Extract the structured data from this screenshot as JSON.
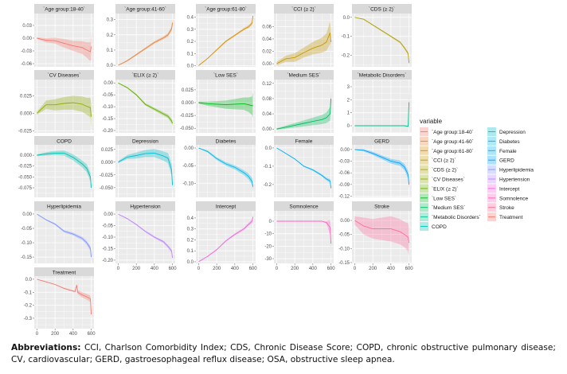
{
  "chart_data": {
    "type": "line",
    "layout": "facet-grid",
    "legend": {
      "title": "variable",
      "placement": "right"
    },
    "grid": true,
    "x_ticks": [
      0,
      200,
      400,
      600
    ],
    "xlim": [
      -30,
      630
    ],
    "x": [
      0,
      100,
      200,
      300,
      400,
      500,
      550,
      590,
      600
    ],
    "panels": [
      {
        "title": "`Age group:18-40`",
        "color": "#F8766D",
        "yticks": [
          0.03,
          0.0,
          -0.03,
          -0.06
        ],
        "tick_labels": [
          "0.03",
          "0.00",
          "-0.03",
          "-0.06"
        ],
        "ylim": [
          -0.0675,
          0.058
        ],
        "y": [
          0,
          -0.005,
          -0.006,
          -0.012,
          -0.018,
          -0.022,
          -0.028,
          -0.032,
          -0.02
        ],
        "band": [
          0.002,
          0.005,
          0.007,
          0.01,
          0.012,
          0.015,
          0.018,
          0.022,
          0.03
        ]
      },
      {
        "title": "`Age group:41-60`",
        "color": "#EC8239",
        "yticks": [
          0.0,
          0.1,
          0.2,
          0.3
        ],
        "tick_labels": [
          "0.0",
          "0.1",
          "0.2",
          "0.3"
        ],
        "ylim": [
          -0.01,
          0.34
        ],
        "y": [
          0,
          0.03,
          0.07,
          0.11,
          0.15,
          0.18,
          0.2,
          0.24,
          0.28
        ],
        "band": [
          0.002,
          0.004,
          0.006,
          0.007,
          0.008,
          0.01,
          0.012,
          0.015,
          0.025
        ]
      },
      {
        "title": "`Age group:61-80`",
        "color": "#DB8E00",
        "yticks": [
          0.0,
          0.1,
          0.2,
          0.3,
          0.4
        ],
        "tick_labels": [
          "0.0",
          "0.1",
          "0.2",
          "0.3",
          "0.4"
        ],
        "ylim": [
          -0.01,
          0.43
        ],
        "y": [
          0,
          0.06,
          0.13,
          0.2,
          0.25,
          0.3,
          0.32,
          0.35,
          0.41
        ],
        "band": [
          0.002,
          0.004,
          0.006,
          0.007,
          0.008,
          0.01,
          0.012,
          0.015,
          0.02
        ]
      },
      {
        "title": "`CCI (≥ 2)`",
        "color": "#C79800",
        "yticks": [
          0.0,
          0.02,
          0.04,
          0.06
        ],
        "tick_labels": [
          "0.00",
          "0.02",
          "0.04",
          "0.06"
        ],
        "ylim": [
          -0.005,
          0.081
        ],
        "y": [
          0,
          0.008,
          0.01,
          0.018,
          0.025,
          0.03,
          0.035,
          0.05,
          0.035
        ],
        "band": [
          0.003,
          0.005,
          0.007,
          0.008,
          0.01,
          0.012,
          0.014,
          0.018,
          0.02
        ]
      },
      {
        "title": "`CDS (≥ 2)`",
        "color": "#AEA200",
        "yticks": [
          0.0,
          -0.1,
          -0.2
        ],
        "tick_labels": [
          "0.0",
          "-0.1",
          "-0.2"
        ],
        "ylim": [
          -0.26,
          0.02
        ],
        "y": [
          0,
          -0.01,
          -0.04,
          -0.07,
          -0.1,
          -0.13,
          -0.16,
          -0.19,
          -0.24
        ],
        "band": [
          0.001,
          0.002,
          0.003,
          0.004,
          0.004,
          0.005,
          0.006,
          0.008,
          0.01
        ]
      },
      {
        "title": "`CV Diseases`",
        "color": "#8FAA00",
        "yticks": [
          0.025,
          0.0,
          -0.025
        ],
        "tick_labels": [
          "0.025",
          "0.000",
          "-0.025"
        ],
        "ylim": [
          -0.028,
          0.048
        ],
        "y": [
          0,
          0.012,
          0.012,
          0.014,
          0.015,
          0.013,
          0.01,
          0.008,
          -0.005
        ],
        "band": [
          0.002,
          0.006,
          0.008,
          0.009,
          0.01,
          0.011,
          0.012,
          0.014,
          0.018
        ]
      },
      {
        "title": "`ELIX (≥ 2)`",
        "color": "#64B200",
        "yticks": [
          0.0,
          -0.05,
          -0.1,
          -0.15,
          -0.2
        ],
        "tick_labels": [
          "0.00",
          "-0.05",
          "-0.10",
          "-0.15",
          "-0.20"
        ],
        "ylim": [
          -0.21,
          0.014
        ],
        "y": [
          0,
          -0.02,
          -0.05,
          -0.09,
          -0.11,
          -0.13,
          -0.14,
          -0.16,
          -0.17
        ],
        "band": [
          0.001,
          0.003,
          0.004,
          0.005,
          0.006,
          0.007,
          0.008,
          0.01,
          0.012
        ]
      },
      {
        "title": "`Low SES`",
        "color": "#00B81B",
        "yticks": [
          0.025,
          0.0,
          -0.025,
          -0.05
        ],
        "tick_labels": [
          "0.025",
          "0.000",
          "-0.025",
          "-0.050"
        ],
        "ylim": [
          -0.059,
          0.045
        ],
        "y": [
          0,
          -0.002,
          -0.003,
          -0.004,
          -0.003,
          -0.002,
          -0.004,
          -0.006,
          -0.005
        ],
        "band": [
          0.002,
          0.004,
          0.006,
          0.008,
          0.01,
          0.012,
          0.014,
          0.018,
          0.025
        ]
      },
      {
        "title": "`Medium SES`",
        "color": "#00BD5C",
        "yticks": [
          0.0,
          0.04,
          0.08,
          0.12
        ],
        "tick_labels": [
          "0.00",
          "0.04",
          "0.08",
          "0.12"
        ],
        "ylim": [
          -0.01,
          0.13
        ],
        "y": [
          0,
          0.005,
          0.01,
          0.015,
          0.02,
          0.025,
          0.03,
          0.04,
          0.08
        ],
        "band": [
          0.002,
          0.004,
          0.006,
          0.008,
          0.01,
          0.012,
          0.014,
          0.018,
          0.025
        ]
      },
      {
        "title": "`Metabolic Disorders`",
        "color": "#00C08D",
        "yticks": [
          0,
          1,
          2,
          3
        ],
        "tick_labels": [
          "0",
          "1",
          "2",
          "3"
        ],
        "ylim": [
          -0.55,
          3.55
        ],
        "y": [
          0,
          0,
          0,
          0,
          0,
          0,
          0,
          -0.05,
          1.8
        ],
        "band": [
          0.01,
          0.01,
          0.01,
          0.01,
          0.01,
          0.02,
          0.03,
          0.05,
          1.6
        ]
      },
      {
        "title": "COPD",
        "color": "#00C1B2",
        "yticks": [
          0.0,
          -0.025,
          -0.05,
          -0.075
        ],
        "tick_labels": [
          "0.000",
          "-0.025",
          "-0.050",
          "-0.075"
        ],
        "ylim": [
          -0.097,
          0.024
        ],
        "y": [
          0,
          0.003,
          0.005,
          0.005,
          -0.005,
          -0.02,
          -0.03,
          -0.05,
          -0.075
        ],
        "band": [
          0.002,
          0.004,
          0.005,
          0.006,
          0.007,
          0.008,
          0.009,
          0.01,
          0.012
        ]
      },
      {
        "title": "Depression",
        "color": "#00BFD0",
        "yticks": [
          0.025,
          0.0,
          -0.025,
          -0.05
        ],
        "tick_labels": [
          "0.025",
          "0.000",
          "-0.025",
          "-0.050"
        ],
        "ylim": [
          -0.069,
          0.034
        ],
        "y": [
          0,
          0.01,
          0.013,
          0.017,
          0.018,
          0.012,
          0.008,
          -0.015,
          -0.045
        ],
        "band": [
          0.002,
          0.004,
          0.006,
          0.007,
          0.008,
          0.009,
          0.01,
          0.012,
          0.015
        ]
      },
      {
        "title": "Diabetes",
        "color": "#00BAE8",
        "yticks": [
          0.0,
          -0.05,
          -0.1
        ],
        "tick_labels": [
          "0.00",
          "-0.05",
          "-0.10"
        ],
        "ylim": [
          -0.14,
          0.009
        ],
        "y": [
          0,
          -0.01,
          -0.03,
          -0.045,
          -0.055,
          -0.07,
          -0.08,
          -0.095,
          -0.11
        ],
        "band": [
          0.001,
          0.003,
          0.004,
          0.005,
          0.006,
          0.007,
          0.008,
          0.01,
          0.015
        ]
      },
      {
        "title": "Female",
        "color": "#00B2F3",
        "yticks": [
          0.0,
          -0.1,
          -0.2
        ],
        "tick_labels": [
          "0.0",
          "-0.1",
          "-0.2"
        ],
        "ylim": [
          -0.27,
          0.017
        ],
        "y": [
          0,
          -0.03,
          -0.06,
          -0.1,
          -0.12,
          -0.15,
          -0.17,
          -0.18,
          -0.22
        ],
        "band": [
          0.001,
          0.002,
          0.003,
          0.004,
          0.005,
          0.006,
          0.008,
          0.01,
          0.012
        ]
      },
      {
        "title": "GERD",
        "color": "#00A6FF",
        "yticks": [
          0.0,
          -0.03,
          -0.06,
          -0.09,
          -0.12
        ],
        "tick_labels": [
          "0.00",
          "-0.03",
          "-0.06",
          "-0.09",
          "-0.12"
        ],
        "ylim": [
          -0.123,
          0.012
        ],
        "y": [
          0,
          -0.002,
          -0.01,
          -0.02,
          -0.03,
          -0.035,
          -0.045,
          -0.065,
          -0.09
        ],
        "band": [
          0.001,
          0.003,
          0.004,
          0.005,
          0.006,
          0.007,
          0.008,
          0.01,
          0.012
        ]
      },
      {
        "title": "Hyperlipidemia",
        "color": "#7F96FF",
        "yticks": [
          0.0,
          -0.05,
          -0.1,
          -0.15
        ],
        "tick_labels": [
          "0.00",
          "-0.05",
          "-0.10",
          "-0.15"
        ],
        "ylim": [
          -0.172,
          0.011
        ],
        "y": [
          0,
          -0.02,
          -0.035,
          -0.06,
          -0.07,
          -0.085,
          -0.1,
          -0.12,
          -0.15
        ],
        "band": [
          0.001,
          0.002,
          0.003,
          0.004,
          0.005,
          0.006,
          0.007,
          0.009,
          0.012
        ]
      },
      {
        "title": "Hypertension",
        "color": "#BC83FF",
        "yticks": [
          0.0,
          -0.05,
          -0.1,
          -0.15,
          -0.2
        ],
        "tick_labels": [
          "0.00",
          "-0.05",
          "-0.10",
          "-0.15",
          "-0.20"
        ],
        "ylim": [
          -0.214,
          0.014
        ],
        "y": [
          0,
          -0.02,
          -0.045,
          -0.075,
          -0.1,
          -0.12,
          -0.14,
          -0.16,
          -0.19
        ],
        "band": [
          0.001,
          0.002,
          0.003,
          0.004,
          0.005,
          0.006,
          0.007,
          0.009,
          0.012
        ]
      },
      {
        "title": "Intercept",
        "color": "#F863DF",
        "yticks": [
          0.0,
          0.1,
          0.2,
          0.3,
          0.4
        ],
        "tick_labels": [
          "0.0",
          "0.1",
          "0.2",
          "0.3",
          "0.4"
        ],
        "ylim": [
          -0.015,
          0.465
        ],
        "y": [
          0,
          0.05,
          0.11,
          0.19,
          0.25,
          0.3,
          0.34,
          0.37,
          0.41
        ],
        "band": [
          0.002,
          0.004,
          0.006,
          0.008,
          0.01,
          0.012,
          0.014,
          0.018,
          0.025
        ]
      },
      {
        "title": "Somnolence",
        "color": "#FF62BF",
        "yticks": [
          0,
          -10,
          -20,
          -30
        ],
        "tick_labels": [
          "0",
          "-10",
          "-20",
          "-30"
        ],
        "ylim": [
          -33.8,
          8.3
        ],
        "y": [
          0,
          0,
          0,
          0,
          0,
          0,
          -1,
          -5,
          -18
        ],
        "band": [
          0.1,
          0.1,
          0.1,
          0.1,
          0.1,
          0.2,
          1,
          6,
          12
        ]
      },
      {
        "title": "Stroke",
        "color": "#FF6A9A",
        "yticks": [
          0.0,
          -0.05,
          -0.1,
          -0.15
        ],
        "tick_labels": [
          "0.00",
          "-0.05",
          "-0.10",
          "-0.15"
        ],
        "ylim": [
          -0.153,
          0.034
        ],
        "y": [
          0,
          -0.02,
          -0.03,
          -0.03,
          -0.03,
          -0.04,
          -0.05,
          -0.06,
          -0.08
        ],
        "band": [
          0.015,
          0.03,
          0.035,
          0.04,
          0.045,
          0.045,
          0.045,
          0.05,
          0.05
        ]
      },
      {
        "title": "Treatment",
        "color": "#F8766D",
        "yticks": [
          0.0,
          -0.1,
          -0.2,
          -0.3
        ],
        "tick_labels": [
          "0.0",
          "-0.1",
          "-0.2",
          "-0.3"
        ],
        "ylim": [
          -0.38,
          0.024
        ],
        "x": [
          0,
          100,
          200,
          300,
          420,
          440,
          450,
          500,
          550,
          590,
          600
        ],
        "y": [
          0,
          -0.02,
          -0.04,
          -0.07,
          -0.095,
          -0.045,
          -0.1,
          -0.12,
          -0.135,
          -0.15,
          -0.27
        ],
        "band": [
          0.001,
          0.002,
          0.003,
          0.004,
          0.005,
          0.006,
          0.015,
          0.02,
          0.022,
          0.025,
          0.03
        ]
      }
    ]
  },
  "caption": {
    "label": "Abbreviations:",
    "text": " CCI, Charlson Comorbidity Index; CDS, Chronic Disease Score; COPD, chronic obstructive pulmonary disease; CV, cardiovascular; GERD, gastroesophageal reflux disease; OSA, obstructive sleep apnea."
  }
}
